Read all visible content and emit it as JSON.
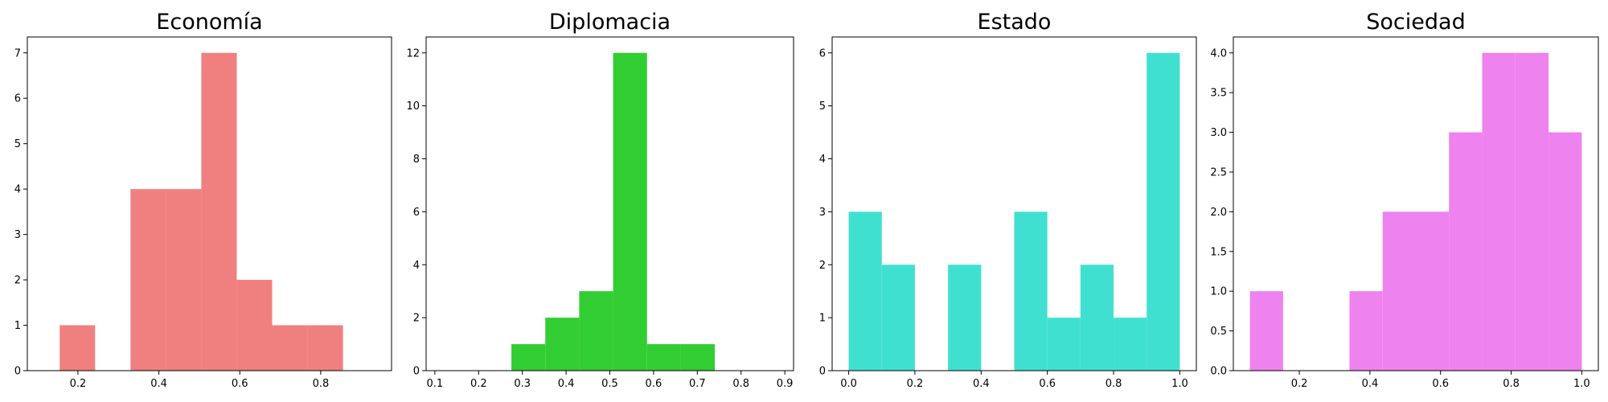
{
  "chart_data": [
    {
      "type": "bar",
      "title": "Economía",
      "color": "#f08080",
      "bins": [
        {
          "x0": 0.155,
          "x1": 0.2425,
          "count": 1
        },
        {
          "x0": 0.2425,
          "x1": 0.33,
          "count": 0
        },
        {
          "x0": 0.33,
          "x1": 0.4175,
          "count": 4
        },
        {
          "x0": 0.4175,
          "x1": 0.505,
          "count": 4
        },
        {
          "x0": 0.505,
          "x1": 0.5925,
          "count": 7
        },
        {
          "x0": 0.5925,
          "x1": 0.68,
          "count": 2
        },
        {
          "x0": 0.68,
          "x1": 0.7675,
          "count": 1
        },
        {
          "x0": 0.7675,
          "x1": 0.855,
          "count": 1
        }
      ],
      "xlim": [
        0.075,
        0.975
      ],
      "ylim": [
        0,
        7.35
      ],
      "xticks": [
        0.2,
        0.4,
        0.6,
        0.8
      ],
      "xtick_labels": [
        "0.2",
        "0.4",
        "0.6",
        "0.8"
      ],
      "yticks": [
        0,
        1,
        2,
        3,
        4,
        5,
        6,
        7
      ],
      "ytick_labels": [
        "0",
        "1",
        "2",
        "3",
        "4",
        "5",
        "6",
        "7"
      ],
      "xlabel": "",
      "ylabel": "",
      "grid": false
    },
    {
      "type": "bar",
      "title": "Diplomacia",
      "color": "#32cd32",
      "bins": [
        {
          "x0": 0.275,
          "x1": 0.3525,
          "count": 1
        },
        {
          "x0": 0.3525,
          "x1": 0.43,
          "count": 2
        },
        {
          "x0": 0.43,
          "x1": 0.5075,
          "count": 3
        },
        {
          "x0": 0.5075,
          "x1": 0.585,
          "count": 12
        },
        {
          "x0": 0.585,
          "x1": 0.6625,
          "count": 1
        },
        {
          "x0": 0.6625,
          "x1": 0.74,
          "count": 1
        }
      ],
      "xlim": [
        0.08,
        0.92
      ],
      "ylim": [
        0,
        12.6
      ],
      "xticks": [
        0.1,
        0.2,
        0.3,
        0.4,
        0.5,
        0.6,
        0.7,
        0.8,
        0.9
      ],
      "xtick_labels": [
        "0.1",
        "0.2",
        "0.3",
        "0.4",
        "0.5",
        "0.6",
        "0.7",
        "0.8",
        "0.9"
      ],
      "yticks": [
        0,
        2,
        4,
        6,
        8,
        10,
        12
      ],
      "ytick_labels": [
        "0",
        "2",
        "4",
        "6",
        "8",
        "10",
        "12"
      ],
      "xlabel": "",
      "ylabel": "",
      "grid": false
    },
    {
      "type": "bar",
      "title": "Estado",
      "color": "#40e0d0",
      "bins": [
        {
          "x0": 0.0,
          "x1": 0.1,
          "count": 3
        },
        {
          "x0": 0.1,
          "x1": 0.2,
          "count": 2
        },
        {
          "x0": 0.2,
          "x1": 0.3,
          "count": 0
        },
        {
          "x0": 0.3,
          "x1": 0.4,
          "count": 2
        },
        {
          "x0": 0.4,
          "x1": 0.5,
          "count": 0
        },
        {
          "x0": 0.5,
          "x1": 0.6,
          "count": 3
        },
        {
          "x0": 0.6,
          "x1": 0.7,
          "count": 1
        },
        {
          "x0": 0.7,
          "x1": 0.8,
          "count": 2
        },
        {
          "x0": 0.8,
          "x1": 0.9,
          "count": 1
        },
        {
          "x0": 0.9,
          "x1": 1.0,
          "count": 6
        }
      ],
      "xlim": [
        -0.05,
        1.05
      ],
      "ylim": [
        0,
        6.3
      ],
      "xticks": [
        0.0,
        0.2,
        0.4,
        0.6,
        0.8,
        1.0
      ],
      "xtick_labels": [
        "0.0",
        "0.2",
        "0.4",
        "0.6",
        "0.8",
        "1.0"
      ],
      "yticks": [
        0,
        1,
        2,
        3,
        4,
        5,
        6
      ],
      "ytick_labels": [
        "0",
        "1",
        "2",
        "3",
        "4",
        "5",
        "6"
      ],
      "xlabel": "",
      "ylabel": "",
      "grid": false
    },
    {
      "type": "bar",
      "title": "Sociedad",
      "color": "#ee82ee",
      "bins": [
        {
          "x0": 0.06,
          "x1": 0.154,
          "count": 1
        },
        {
          "x0": 0.154,
          "x1": 0.248,
          "count": 0
        },
        {
          "x0": 0.248,
          "x1": 0.342,
          "count": 0
        },
        {
          "x0": 0.342,
          "x1": 0.436,
          "count": 1
        },
        {
          "x0": 0.436,
          "x1": 0.53,
          "count": 2
        },
        {
          "x0": 0.53,
          "x1": 0.624,
          "count": 2
        },
        {
          "x0": 0.624,
          "x1": 0.718,
          "count": 3
        },
        {
          "x0": 0.718,
          "x1": 0.812,
          "count": 4
        },
        {
          "x0": 0.812,
          "x1": 0.906,
          "count": 4
        },
        {
          "x0": 0.906,
          "x1": 1.0,
          "count": 3
        }
      ],
      "xlim": [
        0.013,
        1.047
      ],
      "ylim": [
        0,
        4.2
      ],
      "xticks": [
        0.2,
        0.4,
        0.6,
        0.8,
        1.0
      ],
      "xtick_labels": [
        "0.2",
        "0.4",
        "0.6",
        "0.8",
        "1.0"
      ],
      "yticks": [
        0.0,
        0.5,
        1.0,
        1.5,
        2.0,
        2.5,
        3.0,
        3.5,
        4.0
      ],
      "ytick_labels": [
        "0.0",
        "0.5",
        "1.0",
        "1.5",
        "2.0",
        "2.5",
        "3.0",
        "3.5",
        "4.0"
      ],
      "xlabel": "",
      "ylabel": "",
      "grid": false
    }
  ]
}
